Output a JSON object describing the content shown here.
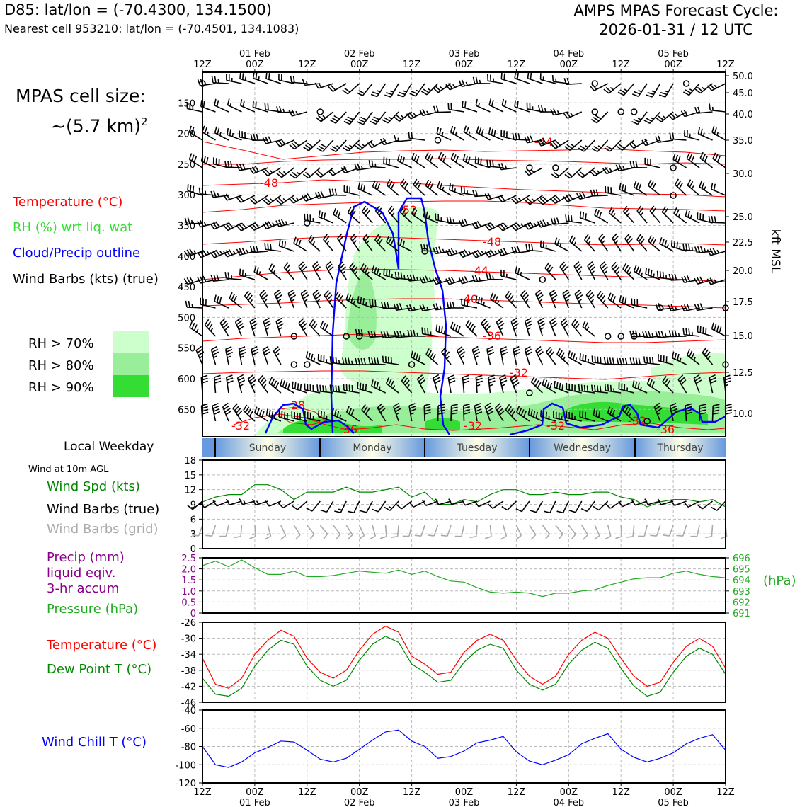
{
  "header": {
    "station": "D85: lat/lon = (-70.4300, 134.1500)",
    "nearest_cell": "Nearest cell 953210: lat/lon = (-70.4501, 134.1083)",
    "cycle_line1": "AMPS MPAS Forecast Cycle:",
    "cycle_line2": "2026-01-31 / 12 UTC"
  },
  "cell_size": {
    "line1": "MPAS cell size:",
    "line2": "~(5.7 km)",
    "sup": "2"
  },
  "legend": {
    "temperature": "Temperature (°C)",
    "rh": "RH (%) wrt liq. wat",
    "cloud": "Cloud/Precip outline",
    "wind_barbs": "Wind Barbs (kts) (true)",
    "rh_gt70": "RH > 70%",
    "rh_gt80": "RH > 80%",
    "rh_gt90": "RH > 90%"
  },
  "colors": {
    "temperature": "#ff0000",
    "rh_label": "#33dd33",
    "cloud": "#0000ff",
    "rh70": "#ccffcc",
    "rh80": "#99ee99",
    "rh90": "#33dd33",
    "wind_speed": "#008800",
    "barb_grid": "#aaaaaa",
    "precip": "#880088",
    "pressure": "#22aa22",
    "dewpoint": "#008800",
    "windchill": "#0000ff"
  },
  "time_axis": {
    "top_ticks": [
      "12Z",
      "00Z",
      "12Z",
      "00Z",
      "12Z",
      "00Z",
      "12Z",
      "00Z",
      "12Z",
      "00Z",
      "12Z"
    ],
    "dates": [
      "01 Feb",
      "02 Feb",
      "03 Feb",
      "04 Feb",
      "05 Feb"
    ],
    "bottom_ticks": [
      "12Z",
      "00Z",
      "12Z",
      "00Z",
      "12Z",
      "00Z",
      "12Z",
      "00Z",
      "12Z",
      "00Z",
      "12Z"
    ]
  },
  "weekday": {
    "title": "Local Weekday",
    "days": [
      "Sunday",
      "Monday",
      "Tuesday",
      "Wednesday",
      "Thursday"
    ]
  },
  "panels": {
    "wind": {
      "title": "Wind at 10m AGL",
      "label_speed": "Wind Spd (kts)",
      "label_true": "Wind Barbs (true)",
      "label_grid": "Wind Barbs (grid)"
    },
    "precip": {
      "label1": "Precip (mm)",
      "label2": "liquid eqiv.",
      "label3": "3-hr accum",
      "label_pressure": "Pressure (hPa)",
      "unit_right": "(hPa)"
    },
    "temp": {
      "label_t": "Temperature (°C)",
      "label_td": "Dew Point T (°C)"
    },
    "chill": {
      "label": "Wind Chill T (°C)"
    }
  },
  "chart_data": [
    {
      "type": "contour",
      "panel": "vertical-profile",
      "y_left_pressure_ticks": [
        150,
        200,
        250,
        300,
        350,
        400,
        450,
        500,
        550,
        600,
        650
      ],
      "y_right_label": "kft MSL",
      "y_right_ticks": [
        "50.0",
        "45.0",
        "40.0",
        "35.0",
        "30.0",
        "25.0",
        "22.5",
        "20.0",
        "17.5",
        "15.0",
        "12.5",
        "10.0"
      ],
      "temperature_contour_labels": [
        "-44",
        "-48",
        "-52",
        "-48",
        "-44",
        "-40",
        "-36",
        "-32",
        "-28",
        "-32",
        "-36",
        "-32",
        "-32",
        "-32",
        "-36"
      ],
      "grid": true
    },
    {
      "type": "line",
      "panel": "wind-speed",
      "ylim": [
        0,
        18
      ],
      "yticks": [
        0,
        3,
        6,
        9,
        12,
        15,
        18
      ],
      "x_hours": [
        0,
        3,
        6,
        9,
        12,
        15,
        18,
        21,
        24,
        27,
        30,
        33,
        36,
        39,
        42,
        45,
        48,
        51,
        54,
        57,
        60,
        63,
        66,
        69,
        72,
        75,
        78,
        81,
        84,
        87,
        90,
        93,
        96,
        99,
        102,
        105,
        108,
        111,
        114,
        117,
        120
      ],
      "series": [
        {
          "name": "Wind Spd (kts)",
          "values": [
            9.5,
            10.5,
            11,
            11,
            13,
            13,
            12,
            10,
            11.5,
            11.5,
            11.5,
            12.5,
            11.5,
            11.5,
            12,
            12.5,
            10.5,
            11.5,
            9,
            9,
            10,
            9.5,
            11,
            12,
            12,
            11,
            11,
            11.5,
            11,
            11,
            11.5,
            11.5,
            10.5,
            10,
            8.5,
            9.5,
            10,
            10,
            9.5,
            10,
            8.5
          ]
        }
      ]
    },
    {
      "type": "line",
      "panel": "precip-pressure",
      "left_ylim": [
        0,
        2.5
      ],
      "left_yticks": [
        "0",
        "0.5",
        "1.0",
        "1.5",
        "2.0",
        "2.5"
      ],
      "right_ylim": [
        691,
        696
      ],
      "right_yticks": [
        691,
        692,
        693,
        694,
        695,
        696
      ],
      "x_hours": [
        0,
        3,
        6,
        9,
        12,
        15,
        18,
        21,
        24,
        27,
        30,
        33,
        36,
        39,
        42,
        45,
        48,
        51,
        54,
        57,
        60,
        63,
        66,
        69,
        72,
        75,
        78,
        81,
        84,
        87,
        90,
        93,
        96,
        99,
        102,
        105,
        108,
        111,
        114,
        117,
        120
      ],
      "series": [
        {
          "name": "Pressure (hPa)",
          "values": [
            695.3,
            695.7,
            695.2,
            695.8,
            695.1,
            694.5,
            694.5,
            694.8,
            694.3,
            694.3,
            694.4,
            694.6,
            694.8,
            694.7,
            694.6,
            694.9,
            694.5,
            694.8,
            694.3,
            693.9,
            693.8,
            693.3,
            692.9,
            692.8,
            692.9,
            692.8,
            692.5,
            692.8,
            692.8,
            693.0,
            693.1,
            693.5,
            693.8,
            694.1,
            694.2,
            694.2,
            694.6,
            694.8,
            694.5,
            694.3,
            694.2
          ]
        },
        {
          "name": "Precip (mm)",
          "values": [
            0,
            0,
            0,
            0,
            0,
            0,
            0,
            0,
            0,
            0,
            0,
            0.02,
            0,
            0,
            0,
            0,
            0,
            0,
            0,
            0,
            0,
            0,
            0,
            0,
            0,
            0,
            0,
            0,
            0,
            0,
            0,
            0,
            0,
            0,
            0,
            0,
            0,
            0,
            0,
            0,
            0
          ]
        }
      ]
    },
    {
      "type": "line",
      "panel": "temperature",
      "ylim": [
        -46,
        -26
      ],
      "yticks": [
        -46,
        -42,
        -38,
        -34,
        -30,
        -26
      ],
      "x_hours": [
        0,
        3,
        6,
        9,
        12,
        15,
        18,
        21,
        24,
        27,
        30,
        33,
        36,
        39,
        42,
        45,
        48,
        51,
        54,
        57,
        60,
        63,
        66,
        69,
        72,
        75,
        78,
        81,
        84,
        87,
        90,
        93,
        96,
        99,
        102,
        105,
        108,
        111,
        114,
        117,
        120
      ],
      "series": [
        {
          "name": "Temperature (°C)",
          "values": [
            -35,
            -41.5,
            -42.5,
            -40,
            -34,
            -30.5,
            -28,
            -29.5,
            -35,
            -38.5,
            -40,
            -38,
            -33,
            -29,
            -27,
            -28.5,
            -34.5,
            -36.5,
            -39,
            -38.5,
            -33.5,
            -30.5,
            -29,
            -30.5,
            -35.5,
            -39.5,
            -41.5,
            -39.5,
            -34,
            -30.5,
            -28.5,
            -30,
            -35,
            -39.5,
            -42,
            -41,
            -36,
            -32,
            -30,
            -32,
            -37.5
          ]
        },
        {
          "name": "Dew Point T (°C)",
          "values": [
            -40,
            -44,
            -44.5,
            -42.5,
            -37,
            -33,
            -30.5,
            -31.5,
            -37,
            -40.5,
            -42,
            -40.5,
            -35.5,
            -31.5,
            -29.5,
            -31,
            -36.5,
            -38.5,
            -41,
            -40.5,
            -36,
            -33,
            -31.5,
            -32.5,
            -38,
            -41.5,
            -43,
            -41.5,
            -36.5,
            -33,
            -31,
            -32.5,
            -37.5,
            -42,
            -44.5,
            -43.5,
            -38.5,
            -34.5,
            -32.5,
            -34,
            -39
          ]
        }
      ]
    },
    {
      "type": "line",
      "panel": "wind-chill",
      "ylim": [
        -120,
        -40
      ],
      "yticks": [
        -120,
        -100,
        -80,
        -60,
        -40
      ],
      "x_hours": [
        0,
        3,
        6,
        9,
        12,
        15,
        18,
        21,
        24,
        27,
        30,
        33,
        36,
        39,
        42,
        45,
        48,
        51,
        54,
        57,
        60,
        63,
        66,
        69,
        72,
        75,
        78,
        81,
        84,
        87,
        90,
        93,
        96,
        99,
        102,
        105,
        108,
        111,
        114,
        117,
        120
      ],
      "series": [
        {
          "name": "Wind Chill T (°C)",
          "values": [
            -80,
            -100,
            -103,
            -97,
            -87,
            -81,
            -74,
            -75,
            -84,
            -94,
            -97,
            -93,
            -83,
            -73,
            -64,
            -62,
            -74,
            -80,
            -93,
            -91,
            -85,
            -76,
            -73,
            -69,
            -86,
            -96,
            -100,
            -95,
            -89,
            -77,
            -71,
            -66,
            -83,
            -92,
            -97,
            -93,
            -87,
            -77,
            -71,
            -67,
            -84
          ]
        }
      ]
    }
  ]
}
